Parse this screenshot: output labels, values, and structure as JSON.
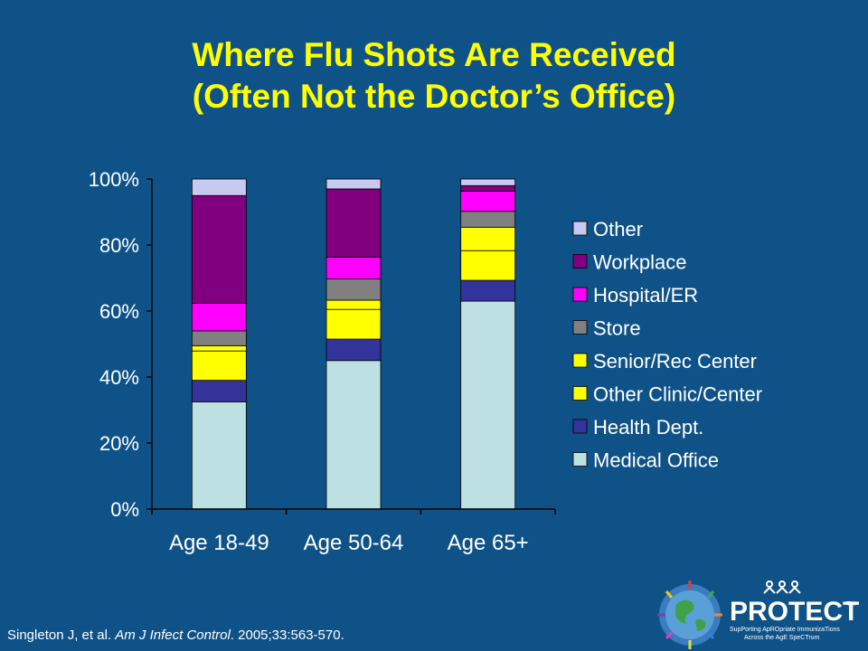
{
  "slide": {
    "title_line1": "Where Flu Shots Are Received",
    "title_line2": "(Often Not the Doctor’s Office)"
  },
  "citation": {
    "authors": "Singleton J, et al. ",
    "journal": "Am J Infect Control",
    "details": ". 2005;33:563-570."
  },
  "logo": {
    "name": "PROTECT",
    "tm": "TM",
    "tagline1": "SupPorting ApROpriate ImmunizaTions",
    "tagline2": "Across the AgE SpeCTrum"
  },
  "colors": {
    "background": "#0f5287",
    "title": "#ffff00",
    "text": "#ffffff"
  },
  "chart_data": {
    "type": "bar",
    "stacked": true,
    "categories": [
      "Age 18-49",
      "Age 50-64",
      "Age 65+"
    ],
    "ylim": [
      0,
      100
    ],
    "yticks": [
      "0%",
      "20%",
      "40%",
      "60%",
      "80%",
      "100%"
    ],
    "ytick_values": [
      0,
      20,
      40,
      60,
      80,
      100
    ],
    "legend_position": "right",
    "series": [
      {
        "name": "Medical Office",
        "color": "#bde0e3",
        "values": [
          32.5,
          45,
          63
        ]
      },
      {
        "name": "Health Dept.",
        "color": "#333399",
        "values": [
          6.5,
          6.5,
          6.3
        ]
      },
      {
        "name": "Other Clinic/Center",
        "color": "#ffff00",
        "values": [
          8.9,
          9,
          9
        ]
      },
      {
        "name": "Senior/Rec Center",
        "color": "#ffff00",
        "values": [
          1.6,
          2.8,
          7.1
        ]
      },
      {
        "name": "Store",
        "color": "#808080",
        "values": [
          4.5,
          6.4,
          4.8
        ]
      },
      {
        "name": "Hospital/ER",
        "color": "#ff00ff",
        "values": [
          8.3,
          6.6,
          6.1
        ]
      },
      {
        "name": "Workplace",
        "color": "#800080",
        "values": [
          32.7,
          20.7,
          1.7
        ]
      },
      {
        "name": "Other",
        "color": "#c8c8f0",
        "values": [
          5,
          3,
          2
        ]
      }
    ]
  }
}
